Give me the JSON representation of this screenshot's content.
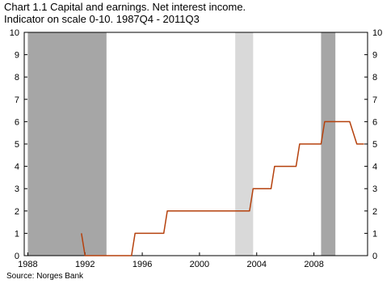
{
  "chart_data": {
    "type": "line",
    "title_line1": "Chart 1.1 Capital and earnings. Net interest income.",
    "title_line2": "Indicator on scale 0-10. 1987Q4 - 2011Q3",
    "source": "Source: Norges Bank",
    "xlabel": "",
    "ylabel": "",
    "xlim": [
      1987.75,
      2011.75
    ],
    "ylim": [
      0,
      10
    ],
    "x_ticks": [
      1988,
      1992,
      1996,
      2000,
      2004,
      2008
    ],
    "y_ticks": [
      0,
      1,
      2,
      3,
      4,
      5,
      6,
      7,
      8,
      9,
      10
    ],
    "y_axes": [
      "left",
      "right"
    ],
    "grid": false,
    "line_color": "#b5410d",
    "shaded_periods": [
      {
        "from": 1988.0,
        "to": 1993.5,
        "shade": "dark",
        "color": "#a6a6a6"
      },
      {
        "from": 2002.5,
        "to": 2003.75,
        "shade": "light",
        "color": "#d9d9d9"
      },
      {
        "from": 2008.5,
        "to": 2009.5,
        "shade": "dark",
        "color": "#a6a6a6"
      }
    ],
    "series": [
      {
        "points": [
          [
            1991.75,
            1
          ],
          [
            1992.0,
            0
          ],
          [
            1995.25,
            0
          ],
          [
            1995.5,
            1
          ],
          [
            1997.5,
            1
          ],
          [
            1997.75,
            2
          ],
          [
            2003.5,
            2
          ],
          [
            2003.75,
            3
          ],
          [
            2005.0,
            3
          ],
          [
            2005.25,
            4
          ],
          [
            2006.75,
            4
          ],
          [
            2007.0,
            5
          ],
          [
            2008.5,
            5
          ],
          [
            2008.75,
            6
          ],
          [
            2010.5,
            6
          ],
          [
            2011.0,
            5
          ],
          [
            2011.5,
            5
          ]
        ]
      }
    ]
  }
}
